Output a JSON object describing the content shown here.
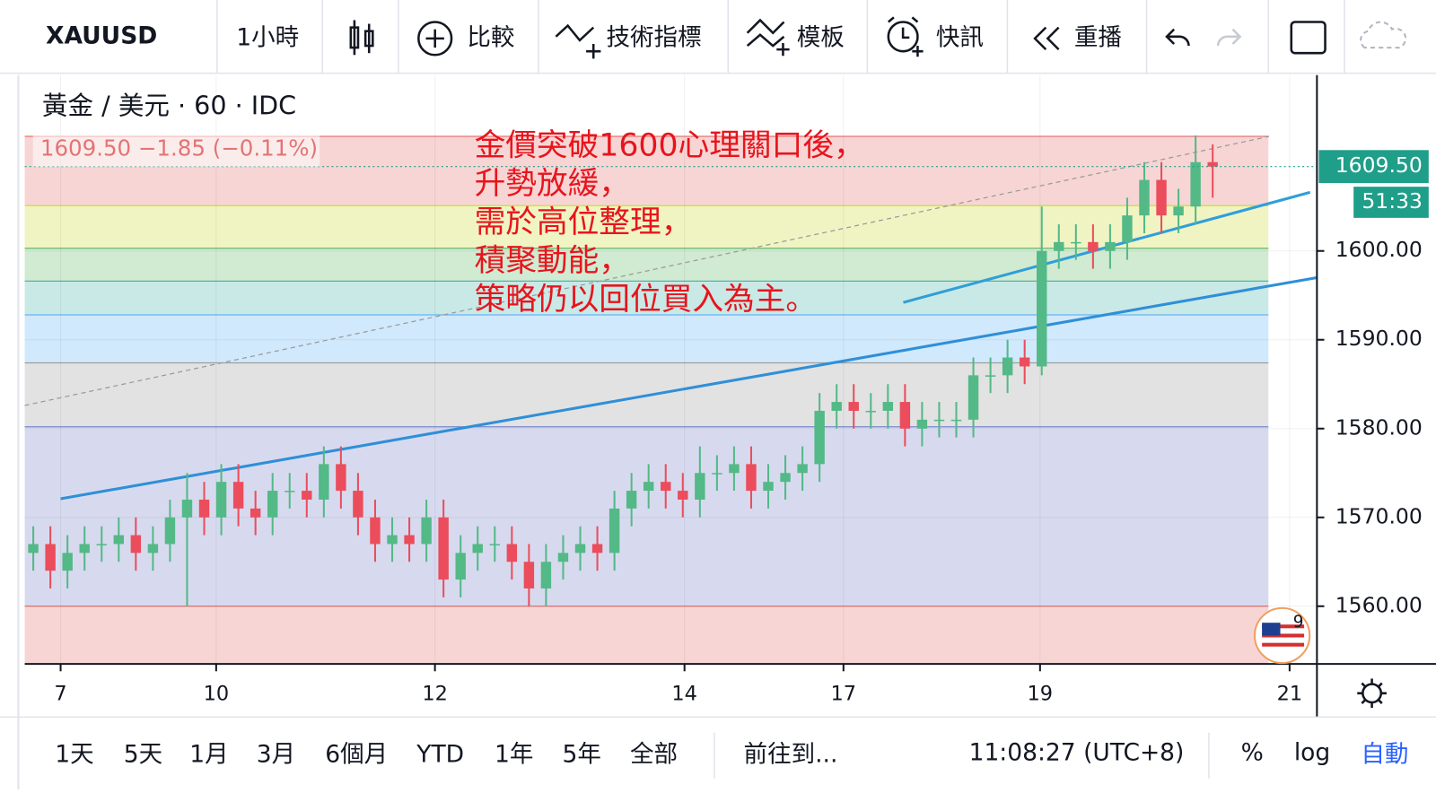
{
  "toolbar": {
    "symbol": "XAUUSD",
    "interval": "1小時",
    "compare": "比較",
    "indicators": "技術指標",
    "templates": "模板",
    "alerts": "快訊",
    "replay": "重播"
  },
  "chart_data": {
    "type": "candlestick",
    "legend_title": "黃金 / 美元 · 60 · IDC",
    "price_line_text": "1609.50  −1.85 (−0.11%)",
    "annotation": [
      "金價突破1600心理關口後，",
      "升勢放緩，",
      "需於高位整理，",
      "積聚動能，",
      "策略仍以回位買入為主。"
    ],
    "last_price_label": "1609.50",
    "countdown": "51:33",
    "badge": "9",
    "colors": {
      "up": "#53b987",
      "down": "#eb4d5c",
      "tag": "#1f9e89"
    },
    "xlim": [
      -0.5,
      75.1
    ],
    "ylim": [
      1553.5,
      1619.8
    ],
    "xticks": [
      {
        "value": 1.6,
        "label": "7"
      },
      {
        "value": 10.7,
        "label": "10"
      },
      {
        "value": 23.5,
        "label": "12"
      },
      {
        "value": 38.1,
        "label": "14"
      },
      {
        "value": 47.4,
        "label": "17"
      },
      {
        "value": 58.9,
        "label": "19"
      },
      {
        "value": 73.5,
        "label": "21"
      }
    ],
    "yticks": [
      {
        "value": 1560,
        "label": "1560.00"
      },
      {
        "value": 1570,
        "label": "1570.00"
      },
      {
        "value": 1580,
        "label": "1580.00"
      },
      {
        "value": 1590,
        "label": "1590.00"
      },
      {
        "value": 1600,
        "label": "1600.00"
      }
    ],
    "grid": true,
    "open": [
      1566,
      1567,
      1564,
      1566,
      1567,
      1567,
      1568,
      1566,
      1567,
      1570,
      1572,
      1570,
      1574,
      1571,
      1570,
      1573,
      1573,
      1572,
      1576,
      1573,
      1570,
      1567,
      1568,
      1567,
      1570,
      1563,
      1566,
      1567,
      1567,
      1565,
      1562,
      1565,
      1566,
      1567,
      1566,
      1571,
      1573,
      1574,
      1573,
      1572,
      1575,
      1575,
      1576,
      1573,
      1574,
      1575,
      1576,
      1582,
      1583,
      1582,
      1582,
      1583,
      1580,
      1581,
      1581,
      1581,
      1586,
      1586,
      1588,
      1587,
      1600,
      1601,
      1601,
      1600,
      1601,
      1604,
      1608,
      1604,
      1605,
      1610
    ],
    "high": [
      1569,
      1569,
      1568,
      1569,
      1569,
      1570,
      1570,
      1569,
      1572,
      1575,
      1574,
      1576,
      1576,
      1573,
      1575,
      1575,
      1575,
      1578,
      1578,
      1575,
      1572,
      1570,
      1570,
      1572,
      1572,
      1568,
      1569,
      1569,
      1569,
      1567,
      1567,
      1568,
      1569,
      1569,
      1573,
      1575,
      1576,
      1576,
      1575,
      1578,
      1577,
      1578,
      1578,
      1576,
      1577,
      1578,
      1584,
      1585,
      1585,
      1584,
      1585,
      1585,
      1583,
      1583,
      1583,
      1588,
      1588,
      1590,
      1590,
      1605,
      1603,
      1603,
      1603,
      1603,
      1606,
      1610,
      1610,
      1607,
      1613,
      1612
    ],
    "low": [
      1564,
      1562,
      1562,
      1564,
      1565,
      1565,
      1564,
      1564,
      1565,
      1560,
      1568,
      1568,
      1569,
      1568,
      1568,
      1571,
      1570,
      1570,
      1571,
      1568,
      1565,
      1565,
      1565,
      1565,
      1561,
      1561,
      1564,
      1565,
      1563,
      1560,
      1560,
      1563,
      1564,
      1564,
      1564,
      1569,
      1571,
      1571,
      1570,
      1570,
      1573,
      1573,
      1571,
      1571,
      1572,
      1573,
      1574,
      1580,
      1580,
      1580,
      1580,
      1578,
      1578,
      1579,
      1579,
      1579,
      1584,
      1584,
      1585,
      1586,
      1598,
      1599,
      1598,
      1598,
      1599,
      1602,
      1602,
      1602,
      1603,
      1606
    ],
    "close": [
      1567,
      1564,
      1566,
      1567,
      1567,
      1568,
      1566,
      1567,
      1570,
      1572,
      1570,
      1574,
      1571,
      1570,
      1573,
      1573,
      1572,
      1576,
      1573,
      1570,
      1567,
      1568,
      1567,
      1570,
      1563,
      1566,
      1567,
      1567,
      1565,
      1562,
      1565,
      1566,
      1567,
      1566,
      1571,
      1573,
      1574,
      1573,
      1572,
      1575,
      1575,
      1576,
      1573,
      1574,
      1575,
      1576,
      1582,
      1583,
      1582,
      1582,
      1583,
      1580,
      1581,
      1581,
      1581,
      1586,
      1586,
      1588,
      1587,
      1600,
      1601,
      1601,
      1600,
      1601,
      1604,
      1608,
      1604,
      1605,
      1610,
      1609.5
    ],
    "fib_levels": [
      1612.9,
      1605.1,
      1600.3,
      1596.6,
      1592.8,
      1587.4,
      1580.2,
      1560
    ],
    "fib_colors": [
      "#e57373",
      "#cddc39",
      "#66bb6a",
      "#4db6ac",
      "#64b5f6",
      "#9e9e9e",
      "#7986cb",
      "#e57373"
    ],
    "trendlines": [
      {
        "x": [
          1.6,
          75.1
        ],
        "y": [
          1572.1,
          1597.0
        ],
        "color": "#2f8fd8",
        "dashed": false
      },
      {
        "x": [
          50.9,
          74.7
        ],
        "y": [
          1594.2,
          1606.6
        ],
        "color": "#2f9fd8",
        "dashed": false
      },
      {
        "x": [
          -0.5,
          72.3
        ],
        "y": [
          1582.6,
          1612.9
        ],
        "color": "#999999",
        "dashed": true
      }
    ]
  },
  "bottom_bar": {
    "ranges": [
      "1天",
      "5天",
      "1月",
      "3月",
      "6個月",
      "YTD",
      "1年",
      "5年",
      "全部"
    ],
    "goto": "前往到...",
    "time": "11:08:27 (UTC+8)",
    "percent": "%",
    "log": "log",
    "auto": "自動"
  }
}
